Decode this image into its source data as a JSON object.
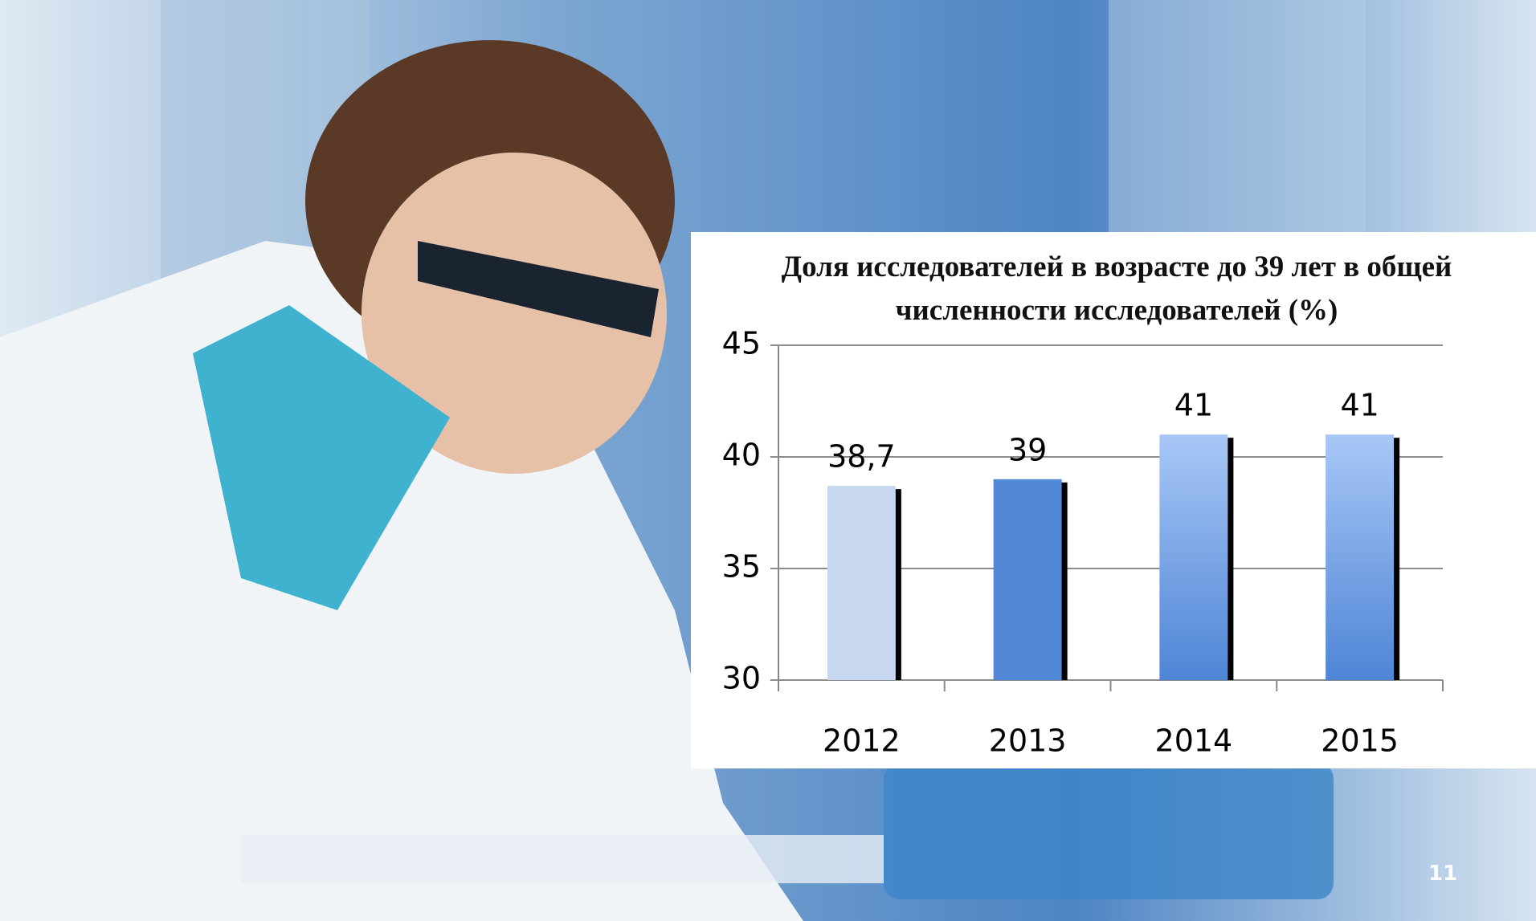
{
  "chart_data": {
    "type": "bar",
    "title": "Доля исследователей в возрасте до 39 лет в общей численности исследователей (%)",
    "categories": [
      "2012",
      "2013",
      "2014",
      "2015"
    ],
    "values": [
      38.7,
      39,
      41,
      41
    ],
    "value_labels": [
      "38,7",
      "39",
      "41",
      "41"
    ],
    "colors": [
      "#c6d7ef",
      "#5289d6",
      "#9dbff3",
      "#9dbff3"
    ],
    "ylim": [
      30,
      45
    ],
    "yticks": [
      30,
      35,
      40,
      45
    ],
    "grid": true
  },
  "page_number": "11"
}
